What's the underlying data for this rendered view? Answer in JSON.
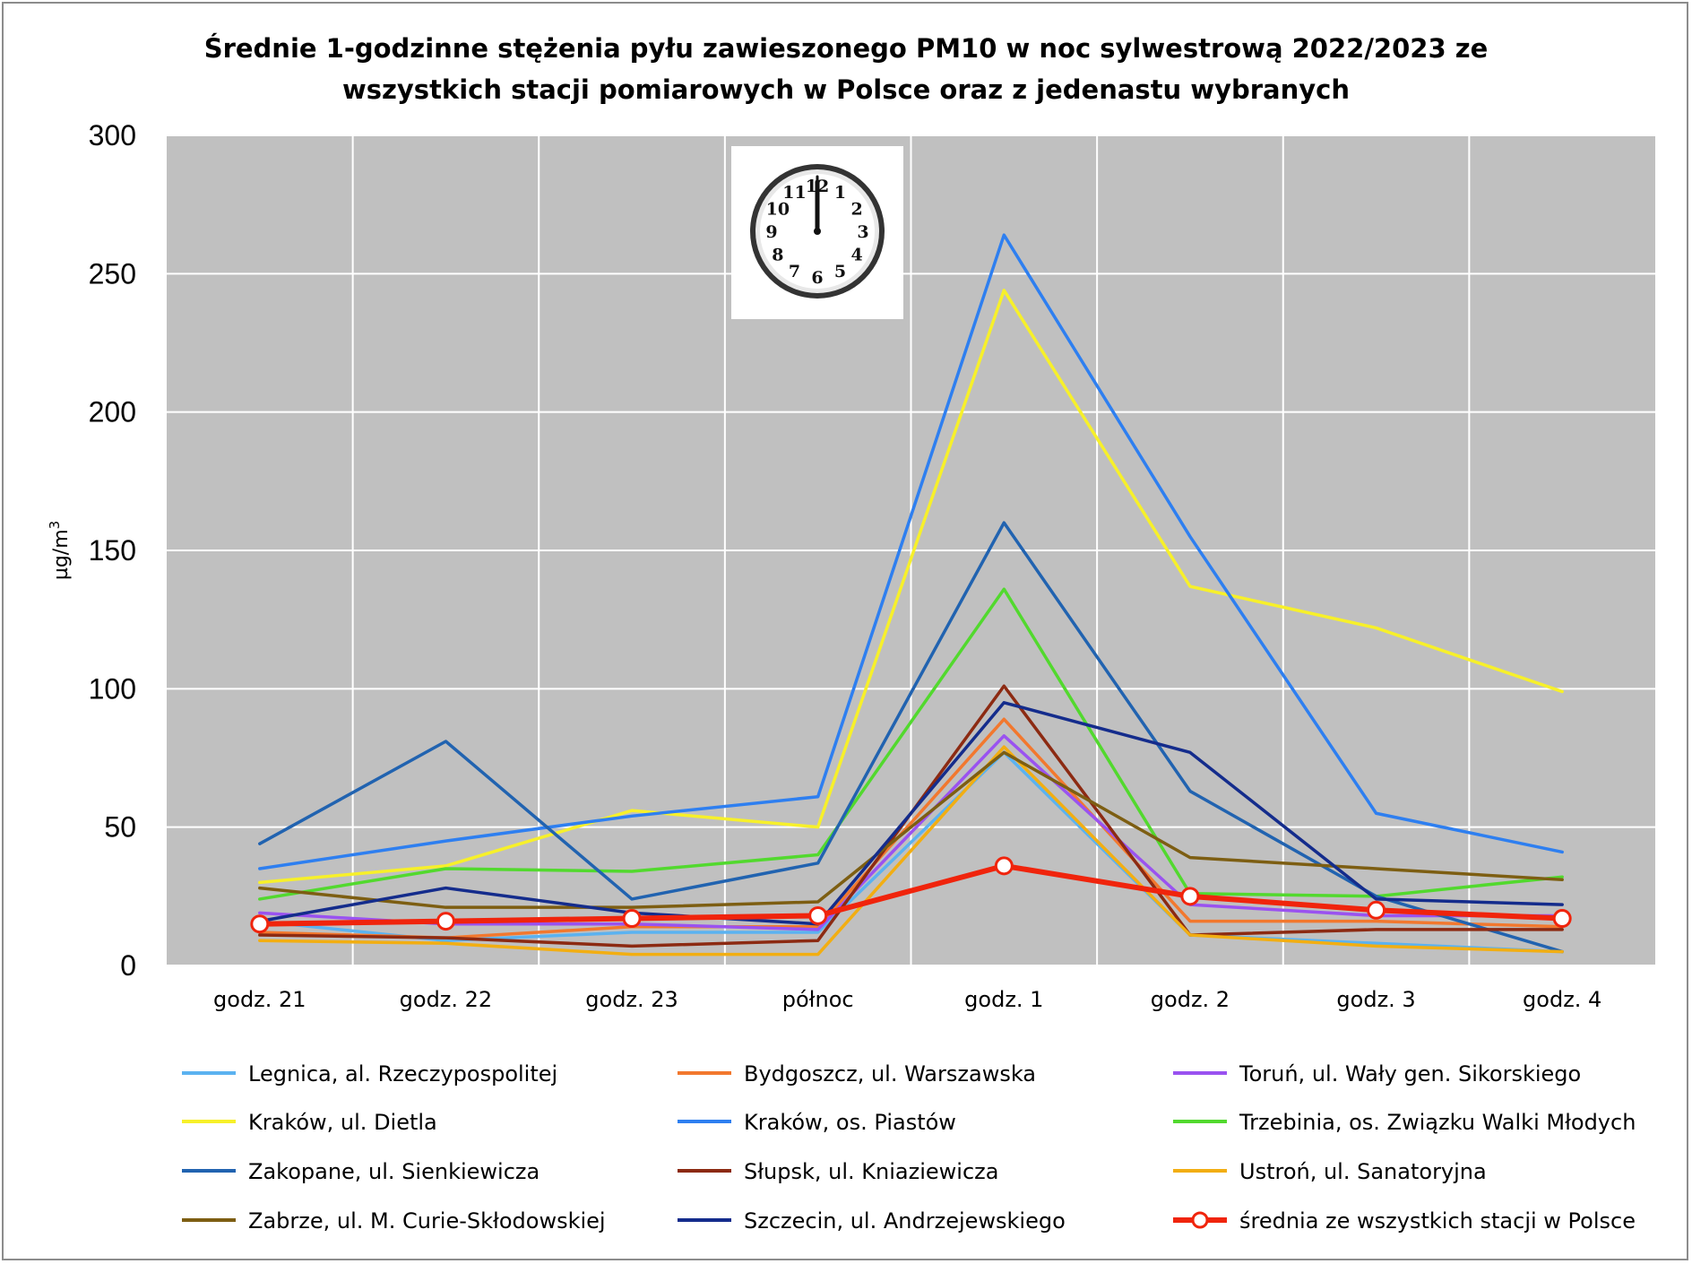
{
  "chart_data": {
    "type": "line",
    "title_lines": [
      "Średnie 1-godzinne stężenia pyłu zawieszonego PM10 w noc sylwestrową 2022/2023 ze",
      "wszystkich stacji pomiarowych w Polsce oraz z jedenastu wybranych"
    ],
    "ylabel": "µg/m",
    "ylabel_sup": "3",
    "ylim": [
      0,
      300
    ],
    "yticks": [
      "0",
      "50",
      "100",
      "150",
      "200",
      "250",
      "300"
    ],
    "categories": [
      "godz. 21",
      "godz. 22",
      "godz. 23",
      "północ",
      "godz. 1",
      "godz. 2",
      "godz. 3",
      "godz. 4"
    ],
    "grid": true,
    "legend_position": "bottom",
    "series": [
      {
        "name": "Legnica, al. Rzeczypospolitej",
        "color": "#5bb2f0",
        "values": [
          16,
          9,
          12,
          12,
          77,
          11,
          8,
          5
        ]
      },
      {
        "name": "Bydgoszcz, ul. Warszawska",
        "color": "#f2782e",
        "values": [
          12,
          10,
          14,
          14,
          89,
          16,
          16,
          14
        ]
      },
      {
        "name": "Toruń, ul. Wały gen. Sikorskiego",
        "color": "#9a52f0",
        "values": [
          19,
          15,
          15,
          13,
          83,
          22,
          18,
          18
        ]
      },
      {
        "name": "Kraków, ul. Dietla",
        "color": "#f7f02a",
        "values": [
          30,
          36,
          56,
          50,
          244,
          137,
          122,
          99
        ]
      },
      {
        "name": "Kraków, os. Piastów",
        "color": "#2e7ff0",
        "values": [
          35,
          45,
          54,
          61,
          264,
          155,
          55,
          41
        ]
      },
      {
        "name": "Trzebinia, os. Związku Walki Młodych",
        "color": "#52d92e",
        "values": [
          24,
          35,
          34,
          40,
          136,
          26,
          25,
          32
        ]
      },
      {
        "name": "Zakopane, ul. Sienkiewicza",
        "color": "#2163b0",
        "values": [
          44,
          81,
          24,
          37,
          160,
          63,
          25,
          5
        ]
      },
      {
        "name": "Słupsk, ul. Kniaziewicza",
        "color": "#8c2a12",
        "values": [
          11,
          10,
          7,
          9,
          101,
          11,
          13,
          13
        ]
      },
      {
        "name": "Ustroń, ul. Sanatoryjna",
        "color": "#f2ae12",
        "values": [
          9,
          8,
          4,
          4,
          79,
          11,
          7,
          5
        ]
      },
      {
        "name": "Zabrze, ul. M. Curie-Skłodowskiej",
        "color": "#7d5e12",
        "values": [
          28,
          21,
          21,
          23,
          77,
          39,
          35,
          31
        ]
      },
      {
        "name": "Szczecin, ul. Andrzejewskiego",
        "color": "#142c8c",
        "values": [
          16,
          28,
          19,
          15,
          95,
          77,
          24,
          22
        ]
      },
      {
        "name": "średnia ze wszystkich stacji w Polsce",
        "color": "#f0240c",
        "values": [
          15,
          16,
          17,
          18,
          36,
          25,
          20,
          17
        ],
        "markers": true,
        "bold": true
      }
    ]
  },
  "clock": {
    "numerals": [
      "12",
      "1",
      "2",
      "3",
      "4",
      "5",
      "6",
      "7",
      "8",
      "9",
      "10",
      "11"
    ]
  }
}
